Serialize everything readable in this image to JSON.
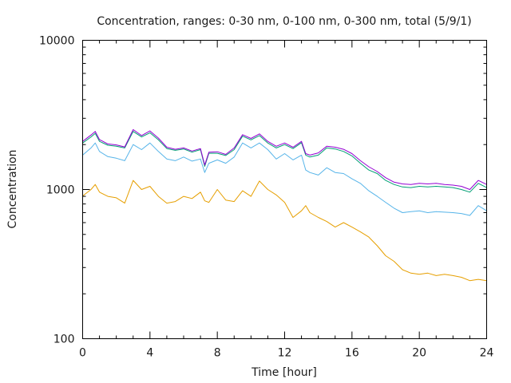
{
  "chart_data": {
    "type": "line",
    "title": "Concentration, ranges: 0-30 nm, 0-100 nm, 0-300 nm, total (5/9/1)",
    "xlabel": "Time [hour]",
    "ylabel": "Concentration",
    "xlim": [
      0,
      24
    ],
    "ylim": [
      100,
      10000
    ],
    "yscale": "log",
    "grid": false,
    "legend": "none",
    "x_ticks": [
      0,
      4,
      8,
      12,
      16,
      20,
      24
    ],
    "x_tick_labels": [
      "0",
      "4",
      "8",
      "12",
      "16",
      "20",
      "24"
    ],
    "y_ticks": [
      100,
      1000,
      10000
    ],
    "y_tick_labels": [
      "100",
      "1000",
      "10000"
    ],
    "x": [
      0,
      0.5,
      0.75,
      1,
      1.5,
      2,
      2.5,
      3,
      3.5,
      4,
      4.5,
      5,
      5.5,
      6,
      6.5,
      7,
      7.25,
      7.5,
      8,
      8.5,
      9,
      9.5,
      10,
      10.5,
      11,
      11.5,
      12,
      12.5,
      13,
      13.25,
      13.5,
      14,
      14.5,
      15,
      15.5,
      16,
      16.5,
      17,
      17.5,
      18,
      18.5,
      19,
      19.5,
      20,
      20.5,
      21,
      21.5,
      22,
      22.5,
      23,
      23.5,
      24
    ],
    "series": [
      {
        "name": "0-30 nm",
        "color": "#e69f00",
        "values": [
          905,
          1000,
          1080,
          960,
          900,
          880,
          810,
          1150,
          1000,
          1050,
          900,
          810,
          830,
          900,
          870,
          960,
          840,
          820,
          1000,
          850,
          830,
          980,
          900,
          1140,
          1000,
          920,
          820,
          650,
          720,
          780,
          700,
          650,
          610,
          560,
          600,
          560,
          520,
          480,
          420,
          360,
          330,
          290,
          275,
          270,
          275,
          265,
          270,
          265,
          258,
          245,
          250,
          245
        ]
      },
      {
        "name": "0-100 nm",
        "color": "#56b4e9",
        "values": [
          1700,
          1900,
          2050,
          1800,
          1660,
          1620,
          1560,
          2000,
          1850,
          2050,
          1800,
          1600,
          1560,
          1650,
          1550,
          1600,
          1300,
          1500,
          1580,
          1500,
          1650,
          2050,
          1900,
          2050,
          1850,
          1600,
          1740,
          1580,
          1700,
          1350,
          1300,
          1250,
          1400,
          1300,
          1280,
          1180,
          1100,
          980,
          900,
          820,
          750,
          700,
          710,
          720,
          700,
          710,
          705,
          700,
          690,
          670,
          780,
          720
        ]
      },
      {
        "name": "0-300 nm",
        "color": "#009e73",
        "values": [
          2050,
          2250,
          2380,
          2100,
          1980,
          1950,
          1900,
          2450,
          2250,
          2400,
          2150,
          1880,
          1830,
          1870,
          1780,
          1850,
          1430,
          1750,
          1750,
          1690,
          1850,
          2280,
          2150,
          2300,
          2050,
          1900,
          2000,
          1880,
          2060,
          1700,
          1650,
          1700,
          1900,
          1870,
          1800,
          1680,
          1500,
          1350,
          1280,
          1150,
          1080,
          1040,
          1030,
          1050,
          1040,
          1050,
          1040,
          1030,
          1000,
          960,
          1100,
          1030
        ]
      },
      {
        "name": "total",
        "color": "#9400d3",
        "values": [
          2100,
          2320,
          2450,
          2160,
          2020,
          1990,
          1930,
          2520,
          2300,
          2470,
          2210,
          1920,
          1860,
          1900,
          1810,
          1880,
          1460,
          1780,
          1790,
          1720,
          1900,
          2330,
          2200,
          2360,
          2100,
          1950,
          2050,
          1920,
          2100,
          1740,
          1700,
          1760,
          1950,
          1920,
          1860,
          1740,
          1560,
          1420,
          1320,
          1200,
          1120,
          1090,
          1080,
          1100,
          1090,
          1100,
          1080,
          1070,
          1050,
          1000,
          1150,
          1080
        ]
      }
    ]
  }
}
